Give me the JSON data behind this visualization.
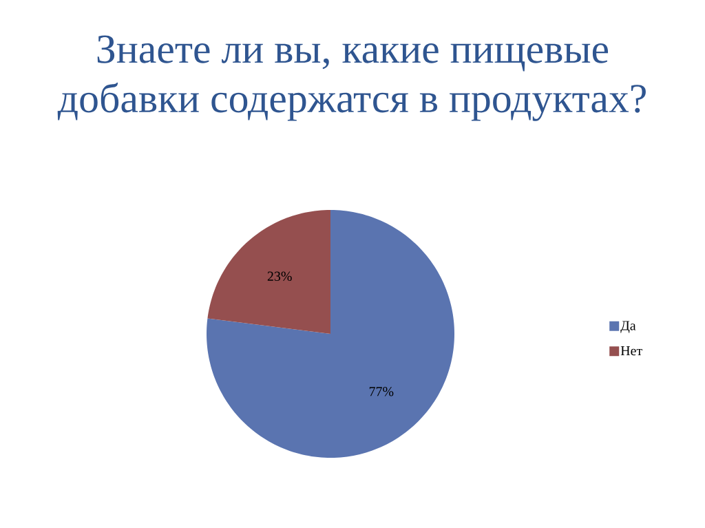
{
  "chart_data": {
    "type": "pie",
    "title": "Знаете ли вы, какие пищевые добавки содержатся в продуктах?",
    "categories": [
      "Да",
      "Нет"
    ],
    "values": [
      77,
      23
    ],
    "colors": [
      "#5a74b0",
      "#954f4f"
    ],
    "value_labels": [
      "77%",
      "23%"
    ],
    "legend": "right"
  }
}
